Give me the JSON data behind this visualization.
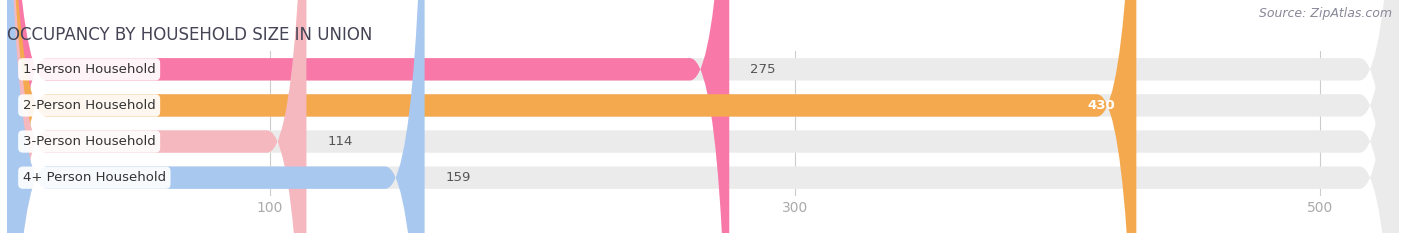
{
  "title": "OCCUPANCY BY HOUSEHOLD SIZE IN UNION",
  "source": "Source: ZipAtlas.com",
  "categories": [
    "1-Person Household",
    "2-Person Household",
    "3-Person Household",
    "4+ Person Household"
  ],
  "values": [
    275,
    430,
    114,
    159
  ],
  "bar_colors": [
    "#f878a8",
    "#f5a94e",
    "#f5b8bf",
    "#a8c8f0"
  ],
  "bar_bg_color": "#ebebeb",
  "background_color": "#ffffff",
  "xlim_min": 0,
  "xlim_max": 530,
  "xticks": [
    100,
    300,
    500
  ],
  "value_label_colors": [
    "#555555",
    "#ffffff",
    "#666666",
    "#666666"
  ],
  "title_fontsize": 12,
  "label_fontsize": 9.5,
  "tick_fontsize": 10,
  "source_fontsize": 9,
  "bar_height": 0.62,
  "rounding_size": 15
}
